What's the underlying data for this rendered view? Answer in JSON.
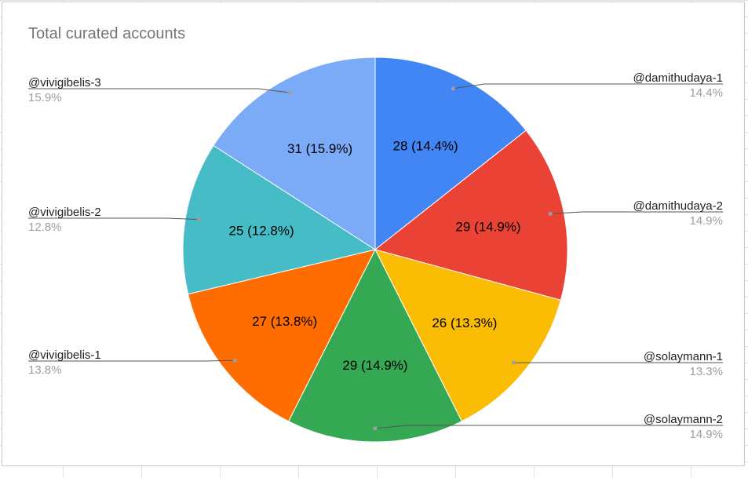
{
  "chart_data": {
    "type": "pie",
    "title": "Total curated accounts",
    "slices": [
      {
        "name": "@damithudaya-1",
        "value": 28,
        "percent": "14.4%",
        "label": "28 (14.4%)",
        "color": "#4285f4"
      },
      {
        "name": "@damithudaya-2",
        "value": 29,
        "percent": "14.9%",
        "label": "29 (14.9%)",
        "color": "#ea4335"
      },
      {
        "name": "@solaymann-1",
        "value": 26,
        "percent": "13.3%",
        "label": "26 (13.3%)",
        "color": "#fbbc04"
      },
      {
        "name": "@solaymann-2",
        "value": 29,
        "percent": "14.9%",
        "label": "29 (14.9%)",
        "color": "#34a853"
      },
      {
        "name": "@vivigibelis-1",
        "value": 27,
        "percent": "13.8%",
        "label": "27 (13.8%)",
        "color": "#ff6d01"
      },
      {
        "name": "@vivigibelis-2",
        "value": 25,
        "percent": "12.8%",
        "label": "25 (12.8%)",
        "color": "#46bdc6"
      },
      {
        "name": "@vivigibelis-3",
        "value": 31,
        "percent": "15.9%",
        "label": "31 (15.9%)",
        "color": "#7baaf7"
      }
    ],
    "legend": "callout-labels"
  }
}
